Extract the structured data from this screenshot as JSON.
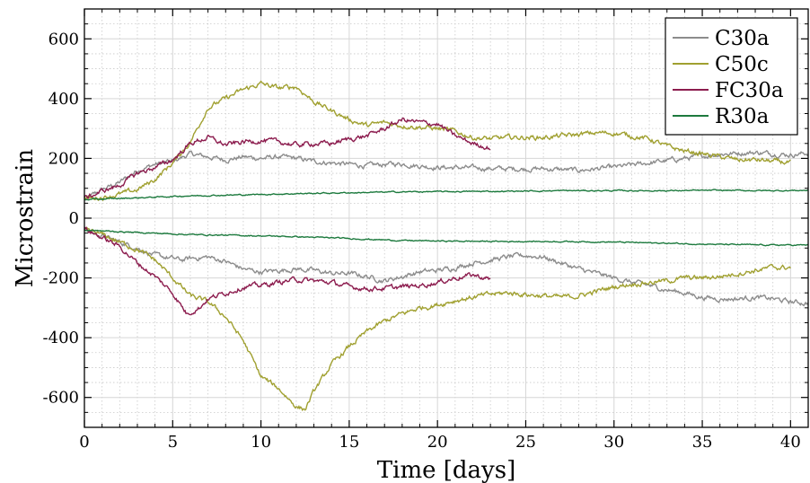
{
  "chart_data": {
    "type": "line",
    "xlabel": "Time [days]",
    "ylabel": "Microstrain",
    "xlim": [
      0,
      41
    ],
    "ylim": [
      -700,
      700
    ],
    "xticks": [
      0,
      5,
      10,
      15,
      20,
      25,
      30,
      35,
      40
    ],
    "yticks": [
      -600,
      -400,
      -200,
      0,
      200,
      400,
      600
    ],
    "grid": true,
    "legend_position": "top-right",
    "series": [
      {
        "name": "C30a",
        "color": "#8c8c8c",
        "branches": [
          [
            [
              0,
              60
            ],
            [
              1,
              95
            ],
            [
              2,
              120
            ],
            [
              3,
              160
            ],
            [
              4,
              180
            ],
            [
              5,
              190
            ],
            [
              6,
              215
            ],
            [
              7,
              205
            ],
            [
              8,
              195
            ],
            [
              9,
              205
            ],
            [
              10,
              200
            ],
            [
              11,
              205
            ],
            [
              12,
              200
            ],
            [
              13,
              190
            ],
            [
              14,
              185
            ],
            [
              15,
              180
            ],
            [
              16,
              175
            ],
            [
              17,
              180
            ],
            [
              18,
              182
            ],
            [
              19,
              175
            ],
            [
              20,
              170
            ],
            [
              22,
              168
            ],
            [
              24,
              165
            ],
            [
              26,
              165
            ],
            [
              28,
              160
            ],
            [
              30,
              170
            ],
            [
              32,
              185
            ],
            [
              34,
              200
            ],
            [
              36,
              215
            ],
            [
              38,
              220
            ],
            [
              40,
              212
            ],
            [
              41,
              218
            ]
          ],
          [
            [
              0,
              -40
            ],
            [
              1,
              -60
            ],
            [
              2,
              -80
            ],
            [
              3,
              -100
            ],
            [
              4,
              -125
            ],
            [
              5,
              -135
            ],
            [
              5.5,
              -140
            ],
            [
              6,
              -135
            ],
            [
              7,
              -130
            ],
            [
              8,
              -145
            ],
            [
              9,
              -170
            ],
            [
              10,
              -180
            ],
            [
              11,
              -175
            ],
            [
              12,
              -170
            ],
            [
              13,
              -175
            ],
            [
              14,
              -185
            ],
            [
              15,
              -185
            ],
            [
              16,
              -195
            ],
            [
              17,
              -210
            ],
            [
              18,
              -195
            ],
            [
              19,
              -180
            ],
            [
              20,
              -175
            ],
            [
              21,
              -165
            ],
            [
              22,
              -150
            ],
            [
              23,
              -140
            ],
            [
              24,
              -130
            ],
            [
              25,
              -125
            ],
            [
              26,
              -130
            ],
            [
              27,
              -150
            ],
            [
              28,
              -170
            ],
            [
              29,
              -185
            ],
            [
              30,
              -200
            ],
            [
              31,
              -215
            ],
            [
              32,
              -225
            ],
            [
              33,
              -240
            ],
            [
              34,
              -250
            ],
            [
              35,
              -265
            ],
            [
              36,
              -270
            ],
            [
              37,
              -270
            ],
            [
              38,
              -265
            ],
            [
              39,
              -270
            ],
            [
              40,
              -280
            ],
            [
              41,
              -285
            ]
          ]
        ]
      },
      {
        "name": "C50c",
        "color": "#a0a030",
        "branches": [
          [
            [
              0,
              65
            ],
            [
              1,
              70
            ],
            [
              2,
              80
            ],
            [
              3,
              95
            ],
            [
              4,
              130
            ],
            [
              5,
              185
            ],
            [
              6,
              255
            ],
            [
              7,
              370
            ],
            [
              8,
              400
            ],
            [
              9,
              430
            ],
            [
              10,
              450
            ],
            [
              11,
              435
            ],
            [
              12,
              440
            ],
            [
              13,
              390
            ],
            [
              14,
              360
            ],
            [
              15,
              330
            ],
            [
              16,
              310
            ],
            [
              17,
              320
            ],
            [
              18,
              310
            ],
            [
              19,
              305
            ],
            [
              20,
              300
            ],
            [
              21,
              290
            ],
            [
              22,
              270
            ],
            [
              23,
              265
            ],
            [
              24,
              270
            ],
            [
              25,
              270
            ],
            [
              26,
              270
            ],
            [
              27,
              275
            ],
            [
              28,
              280
            ],
            [
              29,
              285
            ],
            [
              30,
              285
            ],
            [
              31,
              275
            ],
            [
              32,
              265
            ],
            [
              33,
              240
            ],
            [
              34,
              225
            ],
            [
              35,
              215
            ],
            [
              36,
              205
            ],
            [
              37,
              195
            ],
            [
              38,
              195
            ],
            [
              39,
              190
            ],
            [
              40,
              185
            ]
          ],
          [
            [
              0,
              -40
            ],
            [
              1,
              -55
            ],
            [
              2,
              -80
            ],
            [
              3,
              -105
            ],
            [
              4,
              -140
            ],
            [
              5,
              -200
            ],
            [
              6,
              -260
            ],
            [
              7,
              -280
            ],
            [
              8,
              -330
            ],
            [
              9,
              -410
            ],
            [
              10,
              -530
            ],
            [
              11,
              -570
            ],
            [
              12,
              -630
            ],
            [
              12.5,
              -640
            ],
            [
              13,
              -580
            ],
            [
              14,
              -490
            ],
            [
              15,
              -430
            ],
            [
              16,
              -380
            ],
            [
              17,
              -345
            ],
            [
              18,
              -320
            ],
            [
              19,
              -300
            ],
            [
              20,
              -290
            ],
            [
              21,
              -275
            ],
            [
              22,
              -265
            ],
            [
              23,
              -255
            ],
            [
              24,
              -250
            ],
            [
              25,
              -255
            ],
            [
              26,
              -260
            ],
            [
              27,
              -265
            ],
            [
              28,
              -260
            ],
            [
              29,
              -245
            ],
            [
              30,
              -230
            ],
            [
              31,
              -220
            ],
            [
              32,
              -215
            ],
            [
              33,
              -210
            ],
            [
              34,
              -200
            ],
            [
              35,
              -200
            ],
            [
              36,
              -195
            ],
            [
              37,
              -185
            ],
            [
              38,
              -175
            ],
            [
              39,
              -165
            ],
            [
              40,
              -165
            ]
          ]
        ]
      },
      {
        "name": "FC30a",
        "color": "#8c1c4e",
        "branches": [
          [
            [
              0,
              65
            ],
            [
              1,
              90
            ],
            [
              2,
              110
            ],
            [
              3,
              150
            ],
            [
              4,
              170
            ],
            [
              5,
              195
            ],
            [
              6,
              250
            ],
            [
              7,
              270
            ],
            [
              8,
              245
            ],
            [
              9,
              255
            ],
            [
              10,
              260
            ],
            [
              11,
              255
            ],
            [
              12,
              245
            ],
            [
              13,
              250
            ],
            [
              14,
              250
            ],
            [
              15,
              265
            ],
            [
              16,
              275
            ],
            [
              17,
              300
            ],
            [
              18,
              330
            ],
            [
              19,
              320
            ],
            [
              20,
              315
            ],
            [
              21,
              275
            ],
            [
              22,
              250
            ],
            [
              23,
              235
            ]
          ],
          [
            [
              0,
              -35
            ],
            [
              1,
              -65
            ],
            [
              2,
              -95
            ],
            [
              3,
              -150
            ],
            [
              4,
              -195
            ],
            [
              5,
              -250
            ],
            [
              5.8,
              -320
            ],
            [
              6.5,
              -300
            ],
            [
              7,
              -270
            ],
            [
              8,
              -250
            ],
            [
              9,
              -230
            ],
            [
              10,
              -225
            ],
            [
              11,
              -215
            ],
            [
              12,
              -205
            ],
            [
              13,
              -210
            ],
            [
              14,
              -215
            ],
            [
              15,
              -230
            ],
            [
              16,
              -235
            ],
            [
              17,
              -235
            ],
            [
              18,
              -230
            ],
            [
              19,
              -225
            ],
            [
              20,
              -215
            ],
            [
              21,
              -200
            ],
            [
              22,
              -190
            ],
            [
              23,
              -205
            ]
          ]
        ]
      },
      {
        "name": "R30a",
        "color": "#1d7a3e",
        "branches": [
          [
            [
              0,
              62
            ],
            [
              3,
              68
            ],
            [
              6,
              75
            ],
            [
              9,
              78
            ],
            [
              12,
              82
            ],
            [
              15,
              85
            ],
            [
              18,
              88
            ],
            [
              21,
              89
            ],
            [
              24,
              90
            ],
            [
              27,
              92
            ],
            [
              30,
              92
            ],
            [
              33,
              92
            ],
            [
              36,
              93
            ],
            [
              39,
              92
            ],
            [
              41,
              93
            ]
          ],
          [
            [
              0,
              -40
            ],
            [
              3,
              -48
            ],
            [
              6,
              -55
            ],
            [
              9,
              -58
            ],
            [
              12,
              -62
            ],
            [
              15,
              -68
            ],
            [
              18,
              -75
            ],
            [
              21,
              -77
            ],
            [
              24,
              -78
            ],
            [
              27,
              -78
            ],
            [
              30,
              -80
            ],
            [
              33,
              -84
            ],
            [
              36,
              -88
            ],
            [
              39,
              -90
            ],
            [
              41,
              -90
            ]
          ]
        ]
      }
    ]
  }
}
